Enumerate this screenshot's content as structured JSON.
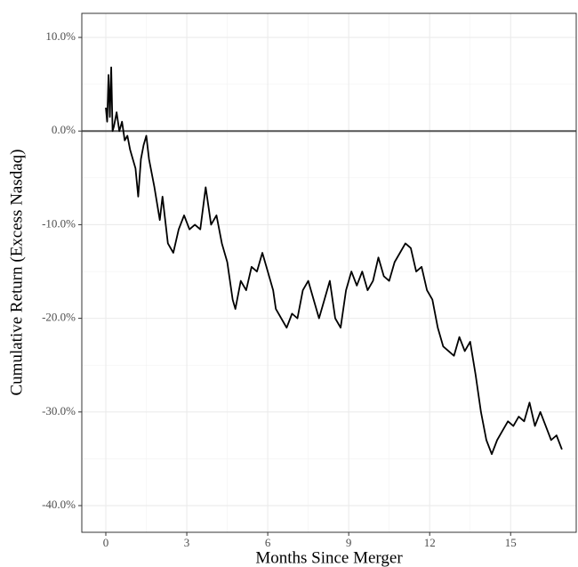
{
  "chart_data": {
    "type": "line",
    "x_label": "Months Since Merger",
    "y_label": "Cumulative Return (Excess Nasdaq)",
    "x": [
      0,
      0.05,
      0.1,
      0.15,
      0.2,
      0.25,
      0.3,
      0.4,
      0.5,
      0.6,
      0.7,
      0.8,
      0.9,
      1.0,
      1.1,
      1.2,
      1.3,
      1.4,
      1.5,
      1.6,
      1.8,
      2.0,
      2.1,
      2.3,
      2.5,
      2.7,
      2.9,
      3.1,
      3.3,
      3.5,
      3.7,
      3.9,
      4.1,
      4.3,
      4.5,
      4.7,
      4.8,
      5.0,
      5.2,
      5.4,
      5.6,
      5.8,
      6.0,
      6.2,
      6.3,
      6.5,
      6.7,
      6.9,
      7.1,
      7.3,
      7.5,
      7.7,
      7.9,
      8.1,
      8.3,
      8.5,
      8.7,
      8.9,
      9.1,
      9.3,
      9.5,
      9.7,
      9.9,
      10.1,
      10.3,
      10.5,
      10.7,
      10.9,
      11.1,
      11.3,
      11.5,
      11.7,
      11.9,
      12.1,
      12.3,
      12.5,
      12.7,
      12.9,
      13.1,
      13.3,
      13.5,
      13.7,
      13.9,
      14.1,
      14.3,
      14.5,
      14.7,
      14.9,
      15.1,
      15.3,
      15.5,
      15.7,
      15.9,
      16.1,
      16.3,
      16.5,
      16.7,
      16.9
    ],
    "values": [
      2.5,
      1,
      6,
      1.5,
      6.8,
      0,
      0.5,
      2,
      0,
      1,
      -1,
      -0.5,
      -2,
      -3,
      -4,
      -7,
      -3,
      -1.5,
      -0.5,
      -3,
      -6,
      -9.5,
      -7,
      -12,
      -13,
      -10.5,
      -9,
      -10.5,
      -10,
      -10.5,
      -6,
      -10,
      -9,
      -12,
      -14,
      -18,
      -19,
      -16,
      -17,
      -14.5,
      -15,
      -13,
      -15,
      -17,
      -19,
      -20,
      -21,
      -19.5,
      -20,
      -17,
      -16,
      -18,
      -20,
      -18,
      -16,
      -20,
      -21,
      -17,
      -15,
      -16.5,
      -15,
      -17,
      -16,
      -13.5,
      -15.5,
      -16,
      -14,
      -13,
      -12,
      -12.5,
      -15,
      -14.5,
      -17,
      -18,
      -21,
      -23,
      -23.5,
      -24,
      -22,
      -23.5,
      -22.5,
      -26,
      -30,
      -33,
      -34.5,
      -33,
      -32,
      -31,
      -31.5,
      -30.5,
      -31,
      -29,
      -31.5,
      -30,
      -31.5,
      -33,
      -32.5,
      -34
    ],
    "color": "#000000",
    "hline": 0,
    "xlim": [
      -0.89,
      17.43
    ],
    "ylim": [
      -42.85,
      12.57
    ],
    "xticks": [
      0,
      3,
      6,
      9,
      12,
      15
    ],
    "yticks": [
      {
        "value": -40,
        "label": "-40.0%"
      },
      {
        "value": -30,
        "label": "-30.0%"
      },
      {
        "value": -20,
        "label": "-20.0%"
      },
      {
        "value": -10,
        "label": "-10.0%"
      },
      {
        "value": 0,
        "label": "0.0%"
      },
      {
        "value": 10,
        "label": "10.0%"
      }
    ],
    "grid": true
  }
}
